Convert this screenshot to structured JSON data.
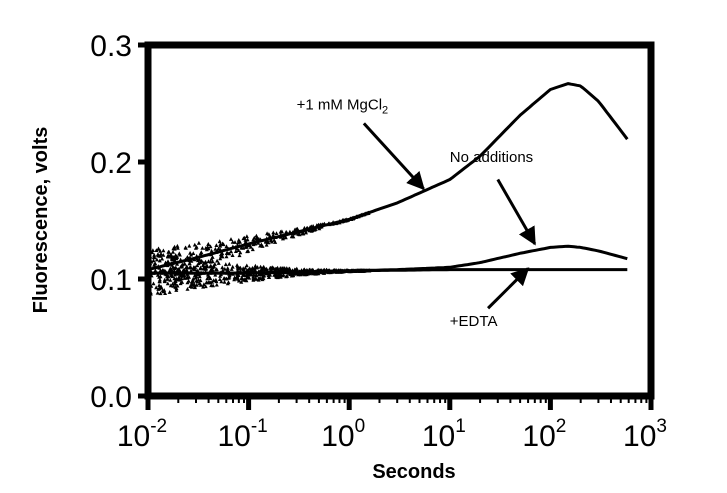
{
  "chart_data": {
    "type": "scatter",
    "title": "",
    "xlabel": "Seconds",
    "ylabel": "Fluorescence, volts",
    "x_scale": "log",
    "xlim": [
      0.01,
      1000
    ],
    "ylim": [
      0.0,
      0.3
    ],
    "x_ticks": [
      {
        "base": "10",
        "exp": "-2"
      },
      {
        "base": "10",
        "exp": "-1"
      },
      {
        "base": "10",
        "exp": "0"
      },
      {
        "base": "10",
        "exp": "1"
      },
      {
        "base": "10",
        "exp": "2"
      },
      {
        "base": "10",
        "exp": "3"
      }
    ],
    "y_ticks": [
      {
        "value": 0.0,
        "label": "0.0"
      },
      {
        "value": 0.1,
        "label": "0.1"
      },
      {
        "value": 0.2,
        "label": "0.2"
      },
      {
        "value": 0.3,
        "label": "0.3"
      }
    ],
    "grid": false,
    "legend": "none",
    "colors": {
      "line": "#000000",
      "background": "#ffffff"
    },
    "series": [
      {
        "label": "+1 mM MgCl2",
        "x": [
          0.01,
          0.03,
          0.1,
          0.3,
          1,
          3,
          10,
          20,
          50,
          100,
          150,
          200,
          300,
          600
        ],
        "y": [
          0.108,
          0.118,
          0.13,
          0.14,
          0.151,
          0.165,
          0.185,
          0.205,
          0.24,
          0.262,
          0.267,
          0.265,
          0.252,
          0.218
        ]
      },
      {
        "label": "No additions",
        "x": [
          0.01,
          0.1,
          1,
          3,
          10,
          20,
          50,
          100,
          150,
          200,
          300,
          600
        ],
        "y": [
          0.105,
          0.105,
          0.107,
          0.108,
          0.11,
          0.114,
          0.122,
          0.127,
          0.128,
          0.127,
          0.124,
          0.117
        ]
      },
      {
        "label": "+EDTA",
        "x": [
          0.01,
          0.1,
          1,
          10,
          100,
          600
        ],
        "y": [
          0.105,
          0.105,
          0.107,
          0.108,
          0.108,
          0.108
        ]
      }
    ],
    "annotations": [
      {
        "id": "mgcl2",
        "text": "+1 mM MgCl",
        "sub": "2",
        "text_at": [
          0.3,
          0.245
        ],
        "arrow_tail": [
          1.4,
          0.233
        ],
        "arrow_head": [
          5.5,
          0.177
        ]
      },
      {
        "id": "no-additions",
        "text": "No additions",
        "sub": "",
        "text_at": [
          10,
          0.2
        ],
        "arrow_tail": [
          30,
          0.185
        ],
        "arrow_head": [
          70,
          0.13
        ]
      },
      {
        "id": "edta",
        "text": "+EDTA",
        "sub": "",
        "text_at": [
          10,
          0.06
        ],
        "arrow_tail": [
          24,
          0.075
        ],
        "arrow_head": [
          60,
          0.109
        ]
      }
    ]
  }
}
